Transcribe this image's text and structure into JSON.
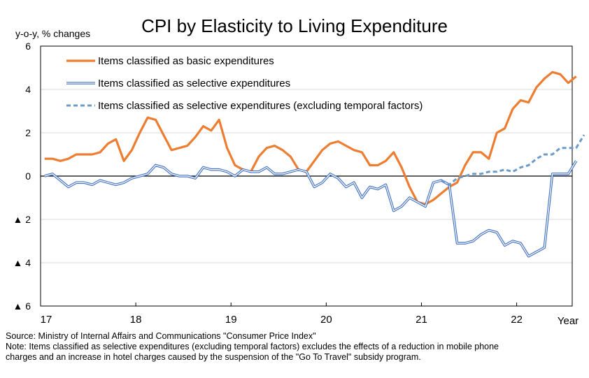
{
  "chart_data": {
    "type": "line",
    "title": "CPI by Elasticity to Living Expenditure",
    "ylabel": "y-o-y, % changes",
    "xlabel": "Year",
    "ylim": [
      -6,
      6
    ],
    "yticks": [
      {
        "value": 6,
        "label": "6"
      },
      {
        "value": 4,
        "label": "4"
      },
      {
        "value": 2,
        "label": "2"
      },
      {
        "value": 0,
        "label": "0"
      },
      {
        "value": -2,
        "label": "▲ 2"
      },
      {
        "value": -4,
        "label": "▲ 4"
      },
      {
        "value": -6,
        "label": "▲ 6"
      }
    ],
    "xticks": [
      {
        "month": 0,
        "label": "17"
      },
      {
        "month": 12,
        "label": "18"
      },
      {
        "month": 24,
        "label": "19"
      },
      {
        "month": 36,
        "label": "20"
      },
      {
        "month": 48,
        "label": "21"
      },
      {
        "month": 60,
        "label": "22"
      }
    ],
    "x_months_total": 67,
    "grid": true,
    "legend_position": "top-left",
    "series": [
      {
        "name": "Items classified as basic expenditures",
        "color": "#ED7D31",
        "style": "solid",
        "values": [
          0.8,
          0.8,
          0.7,
          0.8,
          1.0,
          1.0,
          1.0,
          1.1,
          1.5,
          1.7,
          0.7,
          1.2,
          2.0,
          2.7,
          2.6,
          1.9,
          1.2,
          1.3,
          1.4,
          1.8,
          2.3,
          2.1,
          2.6,
          1.3,
          0.5,
          0.3,
          0.2,
          0.9,
          1.3,
          1.4,
          1.2,
          0.9,
          0.3,
          0.2,
          0.7,
          1.2,
          1.5,
          1.6,
          1.4,
          1.2,
          1.1,
          0.5,
          0.5,
          0.7,
          1.1,
          0.4,
          -0.5,
          -1.2,
          -1.3,
          -1.1,
          -0.8,
          -0.5,
          -0.3,
          0.5,
          1.1,
          1.1,
          0.8,
          2.0,
          2.2,
          3.1,
          3.5,
          3.4,
          4.1,
          4.5,
          4.8,
          4.7,
          4.3,
          4.6
        ]
      },
      {
        "name": "Items classified as selective expenditures",
        "color": "#4472C4",
        "style": "double",
        "values": [
          0.0,
          0.1,
          -0.2,
          -0.5,
          -0.3,
          -0.3,
          -0.4,
          -0.2,
          -0.3,
          -0.4,
          -0.3,
          -0.1,
          0.0,
          0.1,
          0.5,
          0.4,
          0.1,
          0.0,
          0.0,
          -0.1,
          0.4,
          0.3,
          0.3,
          0.2,
          0.0,
          0.3,
          0.2,
          0.2,
          0.4,
          0.1,
          0.1,
          0.2,
          0.3,
          0.2,
          -0.5,
          -0.3,
          0.1,
          -0.1,
          -0.5,
          -0.3,
          -1.0,
          -0.5,
          -0.6,
          -0.4,
          -1.6,
          -1.4,
          -1.0,
          -1.2,
          -1.4,
          -0.3,
          -0.2,
          -0.4,
          -3.1,
          -3.1,
          -3.0,
          -2.7,
          -2.5,
          -2.6,
          -3.2,
          -3.0,
          -3.1,
          -3.7,
          -3.5,
          -3.3,
          0.1,
          0.1,
          0.1,
          0.7
        ]
      },
      {
        "name": "Items classified as selective expenditures (excluding temporal factors)",
        "color": "#6A9BC9",
        "style": "dashed",
        "start_index": 50,
        "values": [
          -0.2,
          -0.4,
          -0.1,
          0.0,
          0.1,
          0.1,
          0.2,
          0.2,
          0.3,
          0.2,
          0.4,
          0.5,
          0.8,
          1.0,
          1.0,
          1.3,
          1.3,
          1.3,
          1.9
        ]
      }
    ]
  },
  "notes": {
    "source": "Source: Ministry of Internal Affairs and Communications \"Consumer Price Index\"",
    "note_line1": "Note: Items classified as selective expenditures (excluding temporal factors) excludes the effects of a reduction in mobile phone",
    "note_line2": "charges and an increase in hotel charges caused by the suspension of the \"Go To Travel\" subsidy program."
  }
}
